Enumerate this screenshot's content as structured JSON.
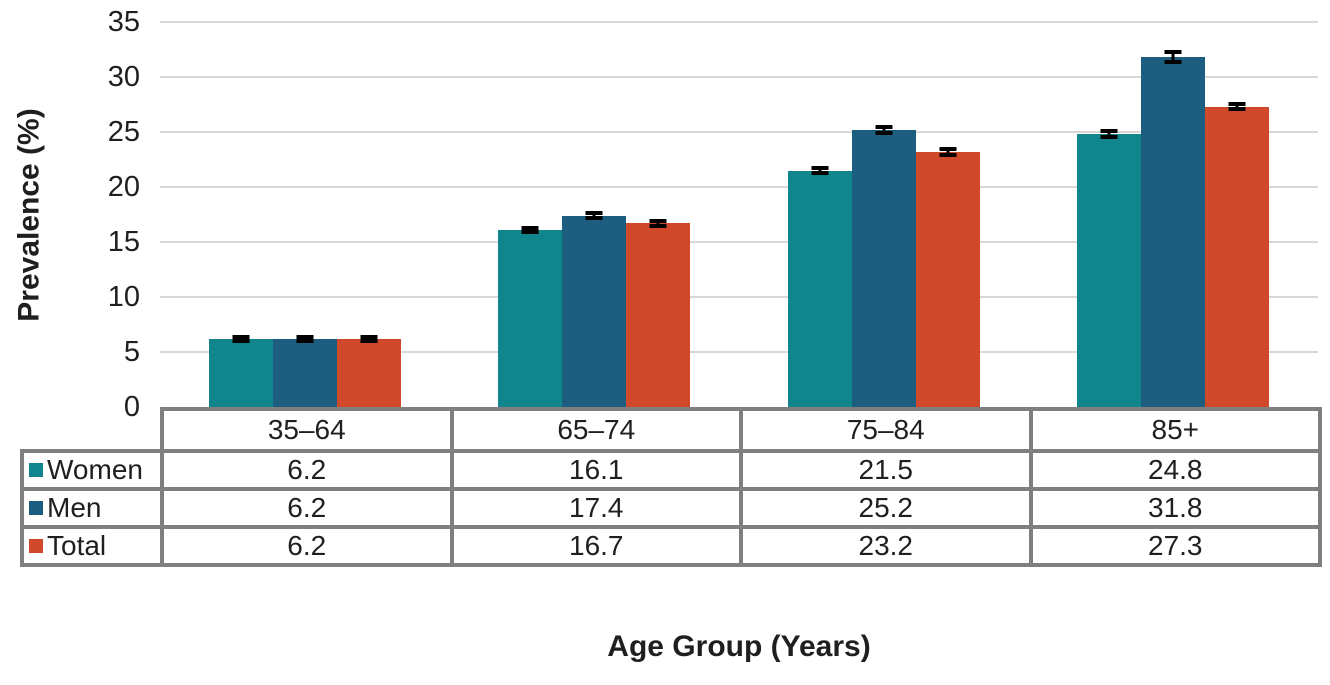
{
  "chart_data": {
    "type": "bar",
    "title": "",
    "xlabel": "Age Group (Years)",
    "ylabel": "Prevalence (%)",
    "ylim": [
      0,
      35
    ],
    "yticks": [
      0,
      5,
      10,
      15,
      20,
      25,
      30,
      35
    ],
    "grid": "horizontal",
    "error_bars": true,
    "legend_position": "table-rows-left",
    "categories": [
      "35–64",
      "65–74",
      "75–84",
      "85+"
    ],
    "series": [
      {
        "name": "Women",
        "color": "#10868C",
        "values": [
          6.2,
          16.1,
          21.5,
          24.8
        ],
        "errors": [
          0.2,
          0.2,
          0.25,
          0.25
        ]
      },
      {
        "name": "Men",
        "color": "#1D5E80",
        "values": [
          6.2,
          17.4,
          25.2,
          31.8
        ],
        "errors": [
          0.2,
          0.25,
          0.3,
          0.45
        ]
      },
      {
        "name": "Total",
        "color": "#D0492B",
        "values": [
          6.2,
          16.7,
          23.2,
          27.3
        ],
        "errors": [
          0.2,
          0.2,
          0.25,
          0.25
        ]
      }
    ],
    "table_values": [
      [
        "6.2",
        "16.1",
        "21.5",
        "24.8"
      ],
      [
        "6.2",
        "17.4",
        "25.2",
        "31.8"
      ],
      [
        "6.2",
        "16.7",
        "23.2",
        "27.3"
      ]
    ]
  },
  "colors": {
    "women": "#10868C",
    "men": "#1D5E80",
    "total": "#D0492B",
    "error_bar": "#000000",
    "gridline": "#D8D8D8",
    "table_border": "#7F7F7F",
    "text": "#1F1F1F",
    "background": "#FFFFFF"
  }
}
